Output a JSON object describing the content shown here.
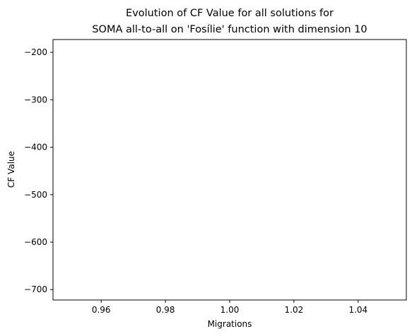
{
  "chart_data": {
    "type": "line",
    "title": [
      "Evolution of CF Value for all solutions for",
      "SOMA all-to-all on 'Fosílie' function with dimension 10"
    ],
    "xlabel": "Migrations",
    "ylabel": "CF Value",
    "xlim": [
      0.945,
      1.055
    ],
    "ylim": [
      -722,
      -173
    ],
    "xticks": [
      0.96,
      0.98,
      1.0,
      1.02,
      1.04
    ],
    "xtick_labels": [
      "0.96",
      "0.98",
      "1.00",
      "1.02",
      "1.04"
    ],
    "yticks": [
      -200,
      -300,
      -400,
      -500,
      -600,
      -700
    ],
    "ytick_labels": [
      "−200",
      "−300",
      "−400",
      "−500",
      "−600",
      "−700"
    ],
    "series": [],
    "grid": false
  }
}
